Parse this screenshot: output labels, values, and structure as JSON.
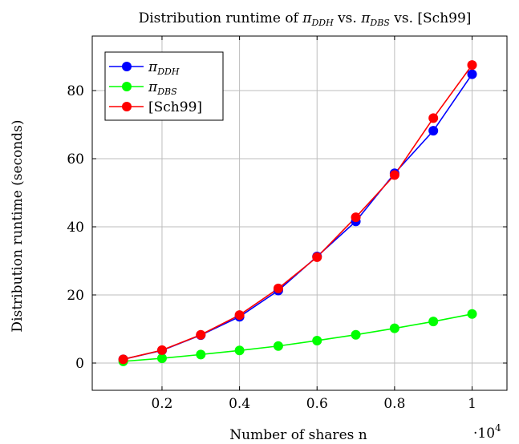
{
  "chart_data": {
    "type": "line",
    "title": "Distribution runtime of πDDH vs. πDBS vs. [Sch99]",
    "title_parts": {
      "prefix": "Distribution runtime of ",
      "sym1": "π",
      "sub1": "DDH",
      "mid1": " vs. ",
      "sym2": "π",
      "sub2": "DBS",
      "mid2": " vs. [Sch99]"
    },
    "xlabel": "Number of shares n",
    "ylabel": "Distribution runtime (seconds)",
    "x_scale_label": "·10",
    "x_scale_exp": "4",
    "x": [
      0.1,
      0.2,
      0.3,
      0.4,
      0.5,
      0.6,
      0.7,
      0.8,
      0.9,
      1.0
    ],
    "xlim": [
      0.02,
      1.09
    ],
    "ylim": [
      -8,
      96
    ],
    "x_ticks": [
      0.2,
      0.4,
      0.6,
      0.8,
      1
    ],
    "x_tick_labels": [
      "0.2",
      "0.4",
      "0.6",
      "0.8",
      "1"
    ],
    "y_ticks": [
      0,
      20,
      40,
      60,
      80
    ],
    "y_tick_labels": [
      "0",
      "20",
      "40",
      "60",
      "80"
    ],
    "grid": true,
    "legend_position": "top-left",
    "series": [
      {
        "name": "πDDH",
        "sym": "π",
        "sub": "DDH",
        "color": "#0000ff",
        "values": [
          1.1,
          3.7,
          8.2,
          13.6,
          21.3,
          31.3,
          41.6,
          55.7,
          68.2,
          84.8
        ]
      },
      {
        "name": "πDBS",
        "sym": "π",
        "sub": "DBS",
        "color": "#00ff00",
        "values": [
          0.5,
          1.4,
          2.5,
          3.7,
          5.0,
          6.6,
          8.3,
          10.2,
          12.2,
          14.4
        ]
      },
      {
        "name": "[Sch99]",
        "sym": "[Sch99]",
        "sub": "",
        "color": "#ff0000",
        "values": [
          1.1,
          3.8,
          8.3,
          14.1,
          21.9,
          31.1,
          42.8,
          55.2,
          71.9,
          87.5
        ]
      }
    ]
  }
}
